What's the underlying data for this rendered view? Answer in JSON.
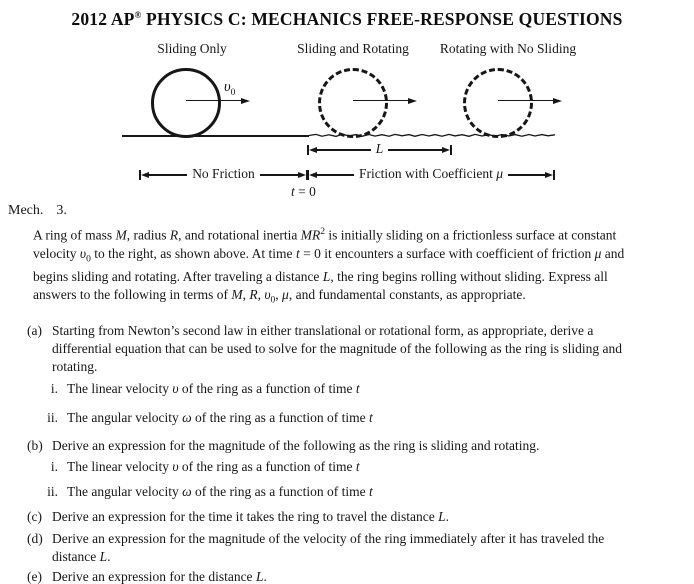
{
  "title": "2012 AP^{®} PHYSICS C: MECHANICS FREE-RESPONSE QUESTIONS",
  "figure": {
    "labels": {
      "col1": "Sliding Only",
      "col2": "Sliding and Rotating",
      "col3": "Rotating with No Sliding"
    },
    "velocity": "*υ*_{0}",
    "distance": "*L*",
    "time": "*t* = 0",
    "left_surface": "No Friction",
    "right_surface": "Friction with Coefficient *μ*"
  },
  "problem": {
    "heading": {
      "label": "Mech.",
      "number": "3."
    },
    "intro_lines": [
      "A ring of mass *M*, radius *R*, and rotational inertia *MR*^{2} is initially sliding on a frictionless surface at constant",
      "velocity *υ*_{0} to the right, as shown above. At time *t* = 0 it encounters a surface with coefficient of friction *μ* and",
      "begins sliding and rotating. After traveling a distance *L*, the ring begins rolling without sliding. Express all",
      "answers to the following in terms of *M*, *R*, *υ*_{0}, *μ*, and fundamental constants, as appropriate."
    ],
    "parts": [
      {
        "marker": "(a)",
        "lines": [
          "Starting from Newton’s second law in either translational or rotational form, as appropriate, derive a",
          "differential equation that can be used to solve for the magnitude of the following as the ring is sliding and",
          "rotating."
        ],
        "sub": [
          {
            "marker": "i.",
            "text": "The linear velocity *υ* of the ring as a function of time *t*"
          },
          {
            "marker": "ii.",
            "text": "The angular velocity *ω* of the ring as a function of time *t*"
          }
        ]
      },
      {
        "marker": "(b)",
        "lines": [
          "Derive an expression for the magnitude of the following as the ring is sliding and rotating."
        ],
        "sub": [
          {
            "marker": "i.",
            "text": "The linear velocity *υ* of the ring as a function of time *t*"
          },
          {
            "marker": "ii.",
            "text": "The angular velocity *ω* of the ring as a function of time *t*"
          }
        ]
      },
      {
        "marker": "(c)",
        "lines": [
          "Derive an expression for the time it takes the ring to travel the distance *L*."
        ],
        "sub": []
      },
      {
        "marker": "(d)",
        "lines": [
          "Derive an expression for the magnitude of the velocity of the ring immediately after it has traveled the",
          "distance *L*."
        ],
        "sub": []
      },
      {
        "marker": "(e)",
        "lines": [
          "Derive an expression for the distance *L*."
        ],
        "sub": []
      }
    ]
  },
  "colors": {
    "ink": "#161616",
    "paper": "#ffffff"
  }
}
